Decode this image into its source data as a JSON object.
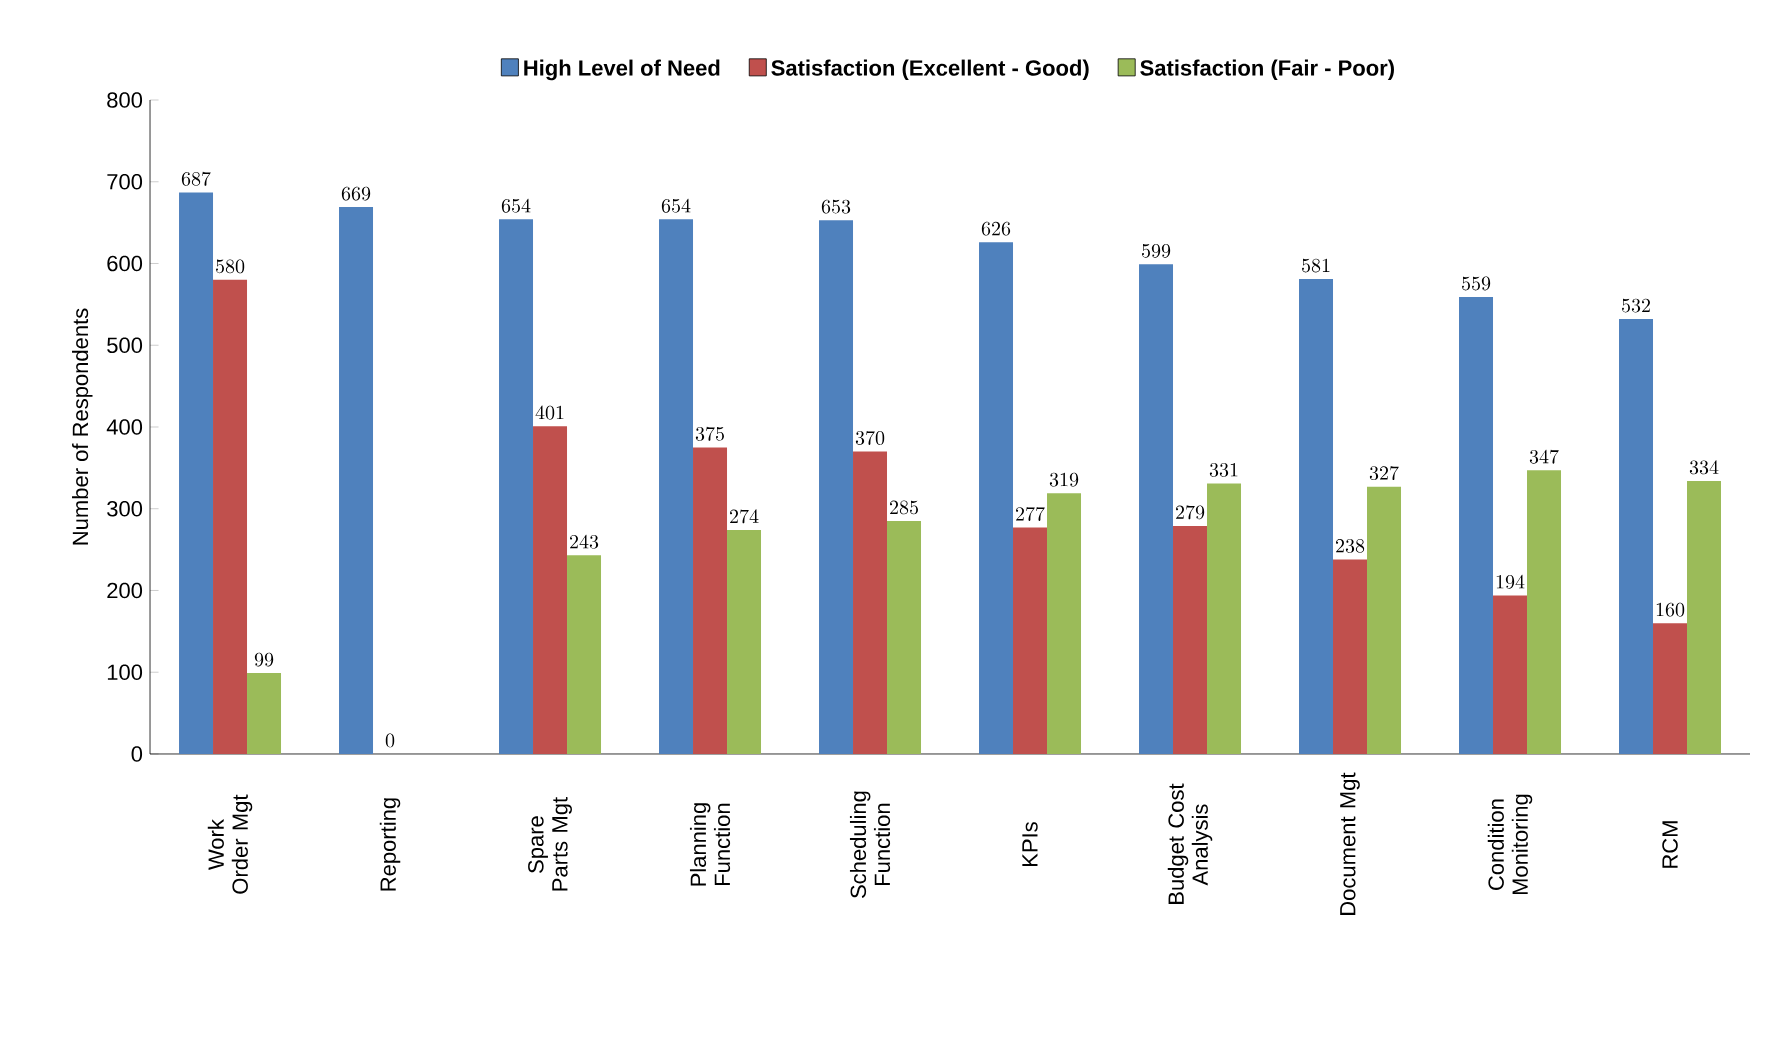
{
  "chart_data": {
    "type": "bar",
    "ylabel": "Number of Respondents",
    "categories": [
      "Work Order Mgt",
      "Reporting",
      "Spare Parts Mgt",
      "Planning Function",
      "Scheduling Function",
      "KPIs",
      "Budget Cost Analysis",
      "Document Mgt",
      "Condition Monitoring",
      "RCM"
    ],
    "series": [
      {
        "name": "High Level of Need",
        "color": "#4f81bd",
        "values": [
          687,
          669,
          654,
          654,
          653,
          626,
          599,
          581,
          559,
          532
        ]
      },
      {
        "name": "Satisfaction (Excellent - Good)",
        "color": "#c0504d",
        "values": [
          580,
          0,
          401,
          375,
          370,
          277,
          279,
          238,
          194,
          160
        ]
      },
      {
        "name": "Satisfaction (Fair - Poor)",
        "color": "#9bbb59",
        "values": [
          99,
          null,
          243,
          274,
          285,
          319,
          331,
          327,
          347,
          334
        ]
      }
    ],
    "ylim": [
      0,
      800
    ],
    "yticks": [
      0,
      100,
      200,
      300,
      400,
      500,
      600,
      700,
      800
    ],
    "legend": "top",
    "data_labels": true
  }
}
